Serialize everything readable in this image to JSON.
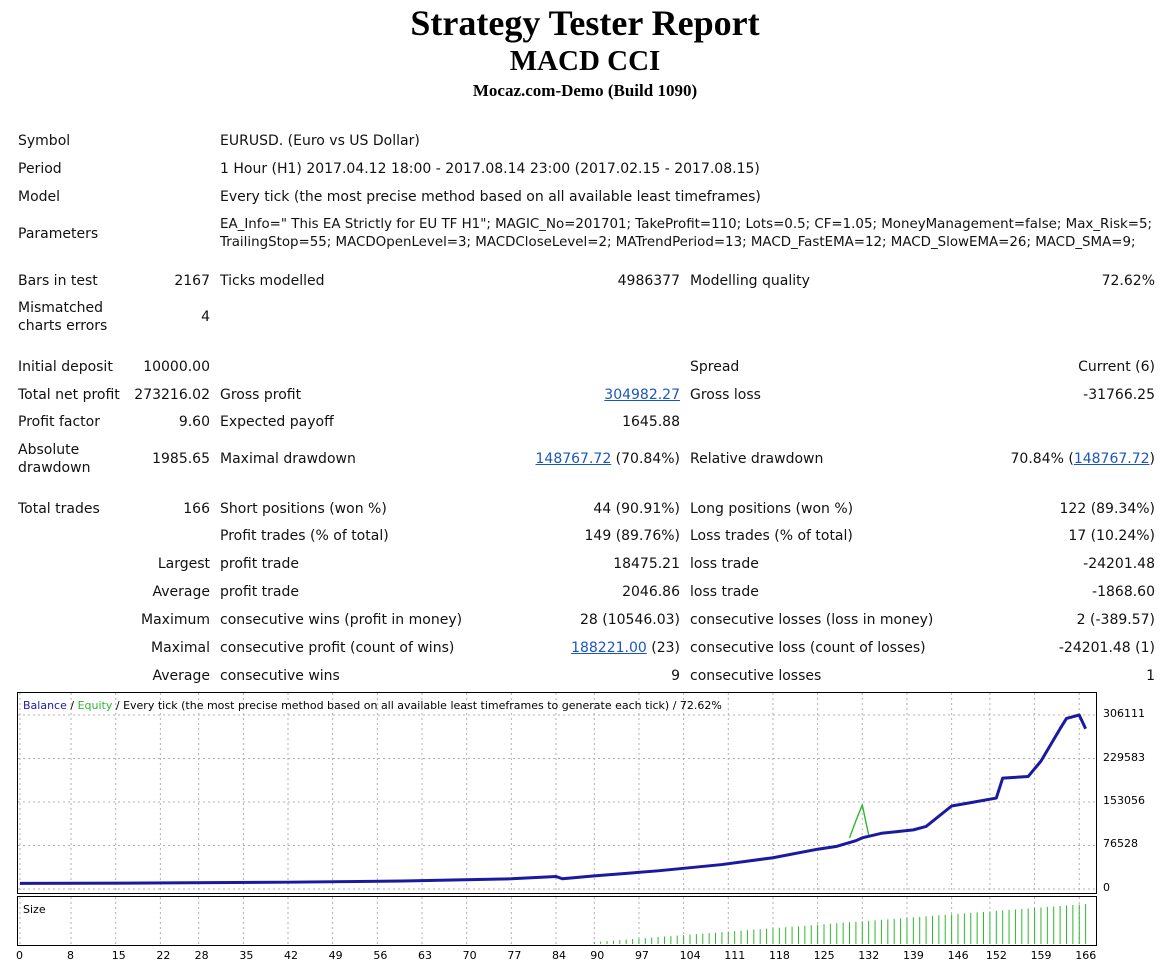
{
  "header": {
    "title": "Strategy Tester Report",
    "subtitle": "MACD CCI",
    "server": "Mocaz.com-Demo (Build 1090)"
  },
  "settings": {
    "symbol_label": "Symbol",
    "symbol_value": "EURUSD. (Euro vs US Dollar)",
    "period_label": "Period",
    "period_value": "1 Hour (H1) 2017.04.12 18:00 - 2017.08.14 23:00 (2017.02.15 - 2017.08.15)",
    "model_label": "Model",
    "model_value": "Every tick (the most precise method based on all available least timeframes)",
    "params_label": "Parameters",
    "params_line1": "EA_Info=\" This EA Strictly for EU TF H1\"; MAGIC_No=201701; TakeProfit=110; Lots=0.5; CF=1.05; MoneyManagement=false; Max_Risk=5;",
    "params_line2": "TrailingStop=55; MACDOpenLevel=3; MACDCloseLevel=2; MATrendPeriod=13; MACD_FastEMA=12; MACD_SlowEMA=26; MACD_SMA=9;"
  },
  "stats": {
    "bars_label": "Bars in test",
    "bars_value": "2167",
    "ticks_label": "Ticks modelled",
    "ticks_value": "4986377",
    "quality_label": "Modelling quality",
    "quality_value": "72.62%",
    "mismatch_label_1": "Mismatched",
    "mismatch_label_2": "charts errors",
    "mismatch_value": "4",
    "deposit_label": "Initial deposit",
    "deposit_value": "10000.00",
    "spread_label": "Spread",
    "spread_value": "Current (6)",
    "netprofit_label": "Total net profit",
    "netprofit_value": "273216.02",
    "grossprofit_label": "Gross profit",
    "grossprofit_value": "304982.27",
    "grossloss_label": "Gross loss",
    "grossloss_value": "-31766.25",
    "pf_label": "Profit factor",
    "pf_value": "9.60",
    "payoff_label": "Expected payoff",
    "payoff_value": "1645.88",
    "absdd_label_1": "Absolute",
    "absdd_label_2": "drawdown",
    "absdd_value": "1985.65",
    "maxdd_label": "Maximal drawdown",
    "maxdd_link": "148767.72",
    "maxdd_pct": " (70.84%)",
    "reldd_label": "Relative drawdown",
    "reldd_pct": "70.84% (",
    "reldd_link": "148767.72",
    "reldd_close": ")",
    "trades_label": "Total trades",
    "trades_value": "166",
    "short_label": "Short positions (won %)",
    "short_value": "44 (90.91%)",
    "long_label": "Long positions (won %)",
    "long_value": "122 (89.34%)",
    "profit_trades_label": "Profit trades (% of total)",
    "profit_trades_value": "149 (89.76%)",
    "loss_trades_label": "Loss trades (% of total)",
    "loss_trades_value": "17 (10.24%)",
    "largest_label": "Largest",
    "largest_pt_label": "profit trade",
    "largest_pt_value": "18475.21",
    "largest_lt_label": "loss trade",
    "largest_lt_value": "-24201.48",
    "average_label": "Average",
    "average_pt_label": "profit trade",
    "average_pt_value": "2046.86",
    "average_lt_label": "loss trade",
    "average_lt_value": "-1868.60",
    "maximum_label": "Maximum",
    "max_cw_label": "consecutive wins (profit in money)",
    "max_cw_value": "28 (10546.03)",
    "max_cl_label": "consecutive losses (loss in money)",
    "max_cl_value": "2 (-389.57)",
    "maximal_label": "Maximal",
    "mxl_cp_label": "consecutive profit (count of wins)",
    "mxl_cp_link": "188221.00",
    "mxl_cp_count": " (23)",
    "mxl_cl_label": "consecutive loss (count of losses)",
    "mxl_cl_value": "-24201.48 (1)",
    "avg2_label": "Average",
    "avg_cw_label": "consecutive wins",
    "avg_cw_value": "9",
    "avg_cl_label": "consecutive losses",
    "avg_cl_value": "1"
  },
  "chart_data": {
    "type": "line",
    "legend_balance": "Balance",
    "legend_sep1": " / ",
    "legend_equity": "Equity",
    "legend_rest": " / Every tick (the most precise method based on all available least timeframes to generate each tick) / 72.62%",
    "y_ticks": [
      "306111",
      "229583",
      "153056",
      "76528",
      "0"
    ],
    "ylim": [
      0,
      306111
    ],
    "xlim": [
      0,
      168
    ],
    "x_ticks": [
      "0",
      "8",
      "15",
      "22",
      "28",
      "35",
      "42",
      "49",
      "56",
      "63",
      "70",
      "77",
      "84",
      "90",
      "97",
      "104",
      "111",
      "118",
      "125",
      "132",
      "139",
      "146",
      "152",
      "159",
      "166"
    ],
    "colors": {
      "balance": "#1a1aa0",
      "equity": "#2db82d",
      "size": "#2db82d",
      "grid": "#b0b0b0"
    },
    "series": [
      {
        "name": "Balance",
        "x": [
          0,
          20,
          42,
          60,
          77,
          84,
          85,
          90,
          100,
          110,
          118,
          125,
          128,
          131,
          132,
          135,
          140,
          142,
          146,
          148,
          149,
          153,
          154,
          158,
          160,
          163,
          164,
          166,
          167
        ],
        "y": [
          10000,
          10500,
          11985,
          14000,
          18000,
          22000,
          18000,
          23000,
          32000,
          43000,
          55000,
          70000,
          75000,
          85000,
          90000,
          98000,
          104000,
          110000,
          146000,
          150000,
          152000,
          160000,
          195000,
          198000,
          225000,
          282000,
          300000,
          306111,
          282000
        ]
      },
      {
        "name": "Equity",
        "x": [
          130,
          131,
          132,
          133
        ],
        "y": [
          90000,
          120000,
          148000,
          95000
        ]
      }
    ],
    "size_label": "Size",
    "size_start_index": 90
  }
}
